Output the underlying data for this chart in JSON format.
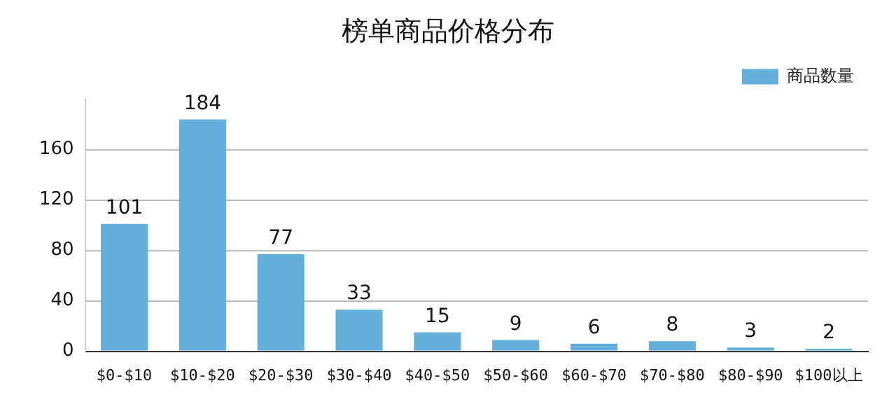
{
  "chart_data": {
    "type": "bar",
    "title": "榜单商品价格分布",
    "categories": [
      "$0-$10",
      "$10-$20",
      "$20-$30",
      "$30-$40",
      "$40-$50",
      "$50-$60",
      "$60-$70",
      "$70-$80",
      "$80-$90",
      "$100以上"
    ],
    "series": [
      {
        "name": "商品数量",
        "color": "#64afdc",
        "values": [
          101,
          184,
          77,
          33,
          15,
          9,
          6,
          8,
          3,
          2
        ]
      }
    ],
    "ylim": [
      0,
      200
    ],
    "yticks": [
      0,
      40,
      80,
      120,
      160
    ],
    "grid": "y",
    "legend": "top right",
    "data_labels": true
  }
}
